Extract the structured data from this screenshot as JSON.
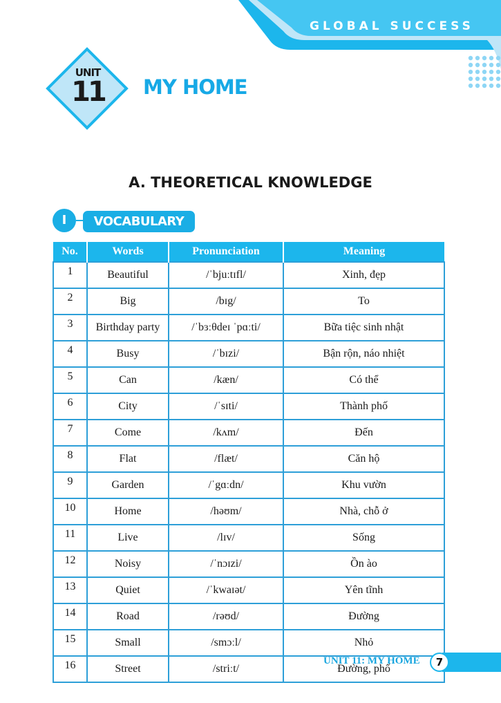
{
  "header": {
    "brand": "GLOBAL SUCCESS"
  },
  "unit": {
    "label": "UNIT",
    "number": "11",
    "title": "MY HOME"
  },
  "section": {
    "title": "A. THEORETICAL KNOWLEDGE"
  },
  "subsection": {
    "numeral": "I",
    "title": "VOCABULARY"
  },
  "table": {
    "headers": [
      "No.",
      "Words",
      "Pronunciation",
      "Meaning"
    ],
    "rows": [
      [
        "1",
        "Beautiful",
        "/ˈbjuːtɪfl/",
        "Xinh, đẹp"
      ],
      [
        "2",
        "Big",
        "/bɪg/",
        "To"
      ],
      [
        "3",
        "Birthday party",
        "/ˈbɜːθdeɪ ˈpɑːti/",
        "Bữa tiệc sinh nhật"
      ],
      [
        "4",
        "Busy",
        "/ˈbɪzi/",
        "Bận rộn, náo nhiệt"
      ],
      [
        "5",
        "Can",
        "/kæn/",
        "Có thể"
      ],
      [
        "6",
        "City",
        "/ˈsɪti/",
        "Thành phố"
      ],
      [
        "7",
        "Come",
        "/kʌm/",
        "Đến"
      ],
      [
        "8",
        "Flat",
        "/flæt/",
        "Căn hộ"
      ],
      [
        "9",
        "Garden",
        "/ˈgɑːdn/",
        "Khu vườn"
      ],
      [
        "10",
        "Home",
        "/həʊm/",
        "Nhà, chỗ ở"
      ],
      [
        "11",
        "Live",
        "/lɪv/",
        "Sống"
      ],
      [
        "12",
        "Noisy",
        "/ˈnɔɪzi/",
        "Ồn ào"
      ],
      [
        "13",
        "Quiet",
        "/ˈkwaɪət/",
        "Yên tĩnh"
      ],
      [
        "14",
        "Road",
        "/rəʊd/",
        "Đường"
      ],
      [
        "15",
        "Small",
        "/smɔːl/",
        "Nhỏ"
      ],
      [
        "16",
        "Street",
        "/striːt/",
        "Đường, phố"
      ]
    ]
  },
  "footer": {
    "text": "UNIT 11: MY HOME",
    "page": "7"
  },
  "colors": {
    "accent": "#1cb6ec",
    "light": "#bfe6f8",
    "dark_text": "#1a1a1a"
  }
}
